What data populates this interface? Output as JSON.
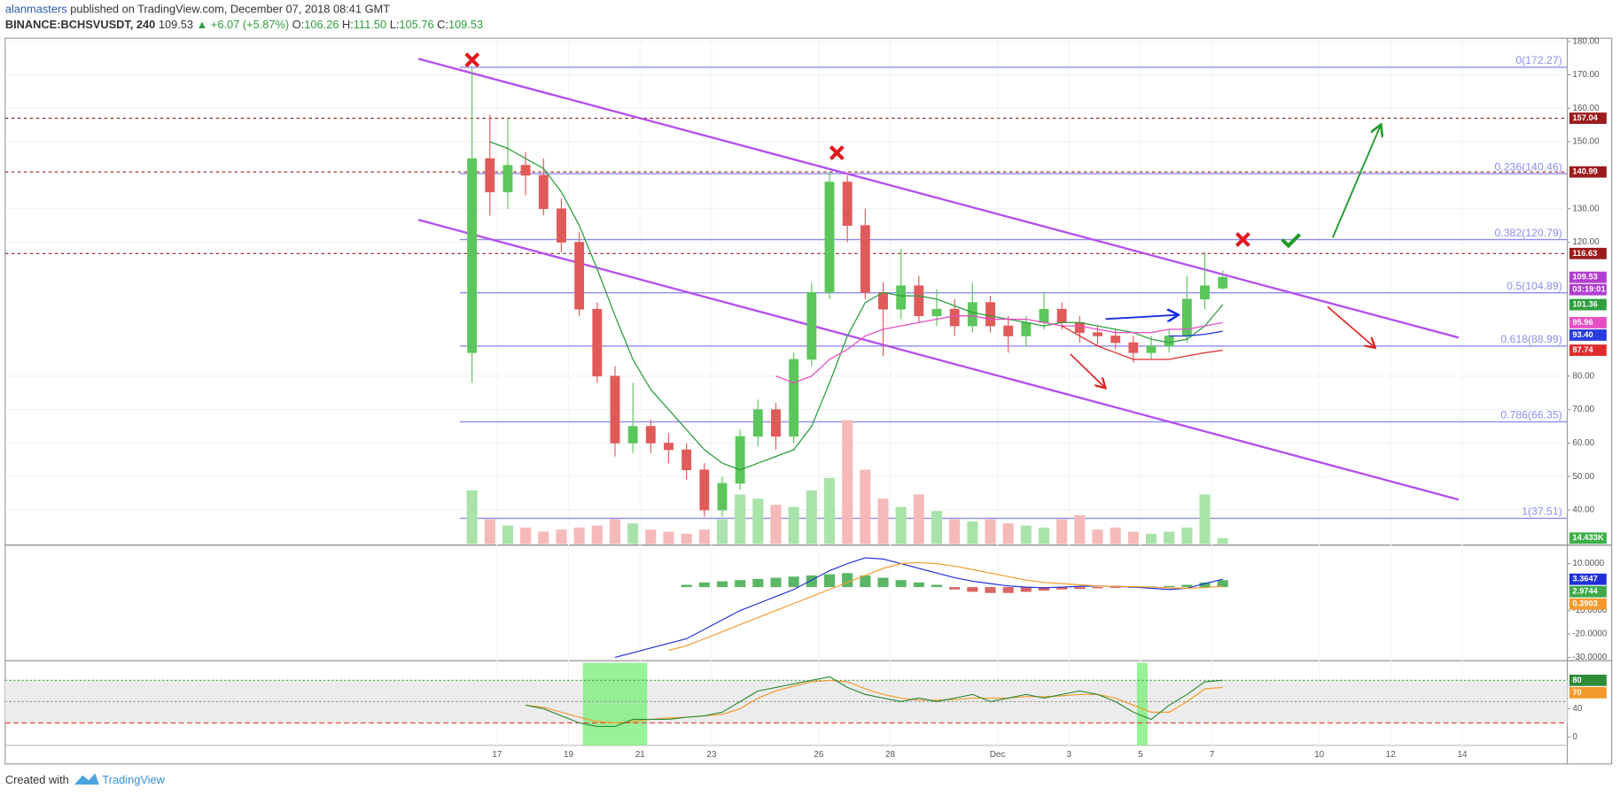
{
  "header": {
    "author": "alanmasters",
    "published": "published on TradingView.com, December 07, 2018 08:41 GMT",
    "symbol": "BINANCE:BCHSVUSDT, 240",
    "last": "109.53",
    "change": "▲ +6.07 (+5.87%)",
    "o_label": "O:",
    "open": "106.26",
    "h_label": "H:",
    "high": "111.50",
    "l_label": "L:",
    "low": "105.76",
    "c_label": "C:",
    "close": "109.53"
  },
  "footer": {
    "created": "Created with",
    "brand": "TradingView"
  },
  "chart_data": {
    "type": "candlestick",
    "x": [
      16.3,
      16.8,
      17.3,
      17.8,
      18.3,
      18.8,
      19.3,
      19.8,
      20.3,
      20.8,
      21.3,
      21.8,
      22.3,
      22.8,
      23.3,
      23.8,
      24.3,
      24.8,
      25.3,
      25.8,
      26.3,
      26.8,
      27.3,
      27.8,
      28.3,
      28.8,
      29.3,
      29.8,
      30.3,
      30.8,
      31.3,
      31.8,
      32.3,
      32.8,
      33.3,
      33.8,
      34.3,
      34.8,
      35.3,
      35.8,
      36.3,
      36.8,
      37.3
    ],
    "open": [
      87,
      145,
      135,
      143,
      140,
      130,
      120,
      100,
      80,
      60,
      65,
      60,
      58,
      52,
      40,
      48,
      62,
      70,
      62,
      85,
      105,
      138,
      125,
      105,
      100,
      107,
      98,
      100,
      95,
      102,
      95,
      92,
      96,
      100,
      96,
      93,
      92,
      90,
      87,
      89,
      92,
      103,
      106.26
    ],
    "high": [
      172,
      158,
      157,
      147,
      145,
      133,
      123,
      102,
      83,
      78,
      67,
      63,
      60,
      54,
      50,
      64,
      73,
      72,
      87,
      108,
      141,
      140,
      130,
      108,
      118,
      110,
      106,
      103,
      108,
      104,
      98,
      98,
      105,
      102,
      98,
      95,
      94,
      92,
      92,
      94,
      110,
      117,
      111.5
    ],
    "low": [
      78,
      128,
      130,
      134,
      128,
      117,
      98,
      78,
      56,
      57,
      57,
      54,
      49,
      38,
      38,
      46,
      59,
      58,
      60,
      83,
      103,
      120,
      103,
      86,
      97,
      96,
      95,
      92,
      93,
      93,
      87,
      89,
      94,
      94,
      90,
      89,
      88,
      84,
      85,
      87,
      90,
      100,
      105.76
    ],
    "close": [
      145,
      135,
      143,
      140,
      130,
      120,
      100,
      80,
      60,
      65,
      60,
      58,
      52,
      40,
      48,
      62,
      70,
      62,
      85,
      105,
      138,
      125,
      105,
      100,
      107,
      98,
      100,
      95,
      102,
      95,
      92,
      96,
      100,
      96,
      93,
      92,
      90,
      87,
      89,
      92,
      103,
      107,
      109.53
    ],
    "up_color": "#5cc65c",
    "down_color": "#e15a5a",
    "last_color": "#b03fd0",
    "countdown": "03:19:01",
    "xlim": [
      3.24,
      46.94
    ],
    "xticks": [
      17,
      19,
      21,
      23,
      26,
      28,
      {
        "value": 31,
        "label": "Dec"
      },
      {
        "value": 33,
        "label": "3"
      },
      {
        "value": 35,
        "label": "5"
      },
      {
        "value": 37,
        "label": "7"
      },
      {
        "value": 40,
        "label": "10"
      },
      {
        "value": 42,
        "label": "12"
      },
      {
        "value": 44,
        "label": "14"
      }
    ],
    "ylim": [
      29.83,
      180.93
    ],
    "yticks": [
      {
        "value": 180,
        "label": "180.00"
      },
      {
        "value": 170,
        "label": "170.00"
      },
      {
        "value": 160,
        "label": "160.00"
      },
      {
        "value": 150,
        "label": "150.00"
      },
      {
        "value": 130,
        "label": "130.00"
      },
      {
        "value": 120,
        "label": "120.00"
      },
      {
        "value": 80,
        "label": "80.00"
      },
      {
        "value": 70,
        "label": "70.00"
      },
      {
        "value": 60,
        "label": "60.00"
      },
      {
        "value": 50,
        "label": "50.00"
      },
      {
        "value": 40,
        "label": "40.00"
      }
    ],
    "grid": true,
    "volume": {
      "values": [
        130,
        60,
        45,
        40,
        30,
        35,
        40,
        45,
        60,
        50,
        35,
        30,
        25,
        35,
        60,
        120,
        110,
        95,
        90,
        130,
        160,
        300,
        180,
        110,
        90,
        120,
        80,
        60,
        55,
        60,
        50,
        45,
        40,
        60,
        70,
        35,
        40,
        30,
        25,
        30,
        40,
        120,
        14.433
      ],
      "vlim": [
        0,
        300
      ],
      "up_color": "#a9e3a9",
      "down_color": "#f6b9b9",
      "current": {
        "value": 14.433,
        "label": "14.433K"
      },
      "label_color": "#3fae49"
    },
    "lines": [
      {
        "color": "#2e9e3e",
        "values": [
          null,
          150,
          148,
          145,
          142,
          135,
          125,
          112,
          98,
          85,
          76,
          70,
          64,
          58,
          54,
          52,
          54,
          56,
          58,
          65,
          78,
          92,
          102,
          105,
          104,
          104,
          103,
          101,
          99,
          98,
          97,
          96,
          95,
          96,
          96,
          95,
          94,
          93,
          91,
          90,
          91,
          95,
          101.36
        ]
      },
      {
        "color": "#e64fc4",
        "values": [
          null,
          null,
          null,
          null,
          null,
          null,
          null,
          null,
          null,
          null,
          null,
          null,
          null,
          null,
          null,
          null,
          null,
          80,
          78,
          80,
          85,
          88,
          92,
          94,
          95,
          96,
          97,
          98,
          98,
          97,
          97,
          97,
          96,
          95,
          95,
          94,
          93,
          93,
          93,
          94,
          94,
          95,
          95.96
        ]
      },
      {
        "color": "#2a3de0",
        "values": [
          null,
          null,
          null,
          null,
          null,
          null,
          null,
          null,
          null,
          null,
          null,
          null,
          null,
          null,
          null,
          null,
          null,
          null,
          null,
          null,
          null,
          null,
          null,
          null,
          null,
          null,
          null,
          null,
          null,
          null,
          null,
          null,
          null,
          null,
          null,
          null,
          null,
          null,
          null,
          92,
          92,
          92.5,
          93.4
        ],
        "last_label": "93.40"
      },
      {
        "color": "#e02c2c",
        "values": [
          null,
          null,
          null,
          null,
          null,
          null,
          null,
          null,
          null,
          null,
          null,
          null,
          null,
          null,
          null,
          null,
          null,
          null,
          null,
          null,
          null,
          null,
          null,
          null,
          null,
          null,
          null,
          null,
          null,
          null,
          null,
          null,
          null,
          95,
          92,
          89,
          87,
          85,
          85,
          85,
          86,
          87,
          87.74
        ]
      }
    ],
    "hlines": {
      "color": "#9b1c1c",
      "values": [
        157.04,
        140.99,
        116.63
      ]
    },
    "fib": {
      "start": 15.96,
      "color": "#8d8df0",
      "levels": [
        {
          "value": 172.27,
          "label": "0(172.27)"
        },
        {
          "value": 140.46,
          "label": "0.236(140.46)"
        },
        {
          "value": 120.79,
          "label": "0.382(120.79)"
        },
        {
          "value": 104.89,
          "label": "0.5(104.89)"
        },
        {
          "value": 88.99,
          "label": "0.618(88.99)"
        },
        {
          "value": 66.35,
          "label": "0.786(66.35)"
        },
        {
          "value": 37.51,
          "label": "1(37.51)"
        }
      ]
    },
    "trendlines": {
      "color": "#b44ff0",
      "lines": [
        {
          "x": [
            14.8,
            43.9
          ],
          "y": [
            174.8,
            91.5
          ]
        },
        {
          "x": [
            14.8,
            43.9
          ],
          "y": [
            126.7,
            43.1
          ]
        }
      ]
    },
    "macd": {
      "ylim": [
        -31.4,
        17.5
      ],
      "yticks": [
        {
          "value": 10,
          "label": "10.0000"
        },
        {
          "value": -10,
          "label": "-10.0000"
        },
        {
          "value": -20,
          "label": "-20.0000"
        },
        {
          "value": -30,
          "label": "-30.0000"
        }
      ],
      "histogram": {
        "up_color": "#3ea94a",
        "down_color": "#d44a4a",
        "label_color": "#3ea94a",
        "values": [
          null,
          null,
          null,
          null,
          null,
          null,
          null,
          null,
          null,
          null,
          null,
          null,
          1,
          2,
          2.5,
          3,
          3.5,
          4,
          4.5,
          5,
          5.5,
          6,
          5,
          4,
          3,
          2,
          1,
          -1,
          -2,
          -2.5,
          -2.5,
          -2,
          -1.5,
          -1,
          -0.8,
          -0.5,
          -0.3,
          0,
          0.3,
          0.5,
          1,
          2,
          2.9744
        ]
      },
      "macd_line": {
        "color": "#1f2fd8",
        "values": [
          null,
          null,
          null,
          null,
          null,
          null,
          null,
          null,
          -30,
          -28,
          -26,
          -24,
          -22,
          -18,
          -14,
          -10,
          -7,
          -4,
          -1,
          3,
          7,
          10,
          12.5,
          12,
          10,
          8,
          6,
          4,
          2.5,
          1.5,
          0.5,
          0,
          -0.3,
          0,
          0.3,
          0.5,
          0.3,
          0,
          -0.5,
          -1,
          -0.5,
          1.5,
          3.3647
        ]
      },
      "signal": {
        "color": "#f39a2c",
        "values": [
          null,
          null,
          null,
          null,
          null,
          null,
          null,
          null,
          null,
          null,
          null,
          -27,
          -25,
          -22,
          -19,
          -16,
          -13,
          -10,
          -7,
          -4,
          -1,
          2,
          5,
          8,
          10,
          10.5,
          10,
          9,
          7.5,
          6,
          4.5,
          3,
          2,
          1.5,
          1,
          0.5,
          0.3,
          0.2,
          0,
          -0.3,
          -0.5,
          -0.2,
          0.3903
        ]
      }
    },
    "stoch_rsi": {
      "ylim": [
        -11.6,
        104.7
      ],
      "yticks": [
        40,
        0
      ],
      "k": {
        "color": "#2e8b3a",
        "values": [
          null,
          null,
          null,
          45,
          40,
          30,
          20,
          15,
          15,
          25,
          25,
          25,
          28,
          30,
          35,
          50,
          65,
          70,
          75,
          80,
          85,
          70,
          60,
          55,
          50,
          55,
          50,
          55,
          60,
          50,
          55,
          60,
          55,
          60,
          65,
          60,
          50,
          35,
          25,
          45,
          60,
          78,
          80
        ]
      },
      "d": {
        "color": "#f39a2c",
        "values": [
          null,
          null,
          null,
          45,
          42,
          35,
          28,
          22,
          20,
          22,
          25,
          27,
          28,
          30,
          32,
          40,
          55,
          65,
          72,
          78,
          80,
          78,
          68,
          60,
          55,
          52,
          52,
          53,
          55,
          55,
          55,
          57,
          57,
          58,
          60,
          60,
          55,
          45,
          35,
          35,
          50,
          68,
          70
        ]
      },
      "levels": [
        {
          "value": 80,
          "color": "#3ea94a"
        },
        {
          "value": 50,
          "color": "#999999"
        },
        {
          "value": 20,
          "color": "#e33b3b"
        }
      ],
      "band_color": "#ececec",
      "highlight_color": "#7ef07e",
      "highlights": [
        [
          19.4,
          21.2
        ],
        [
          34.9,
          35.2
        ]
      ]
    }
  }
}
